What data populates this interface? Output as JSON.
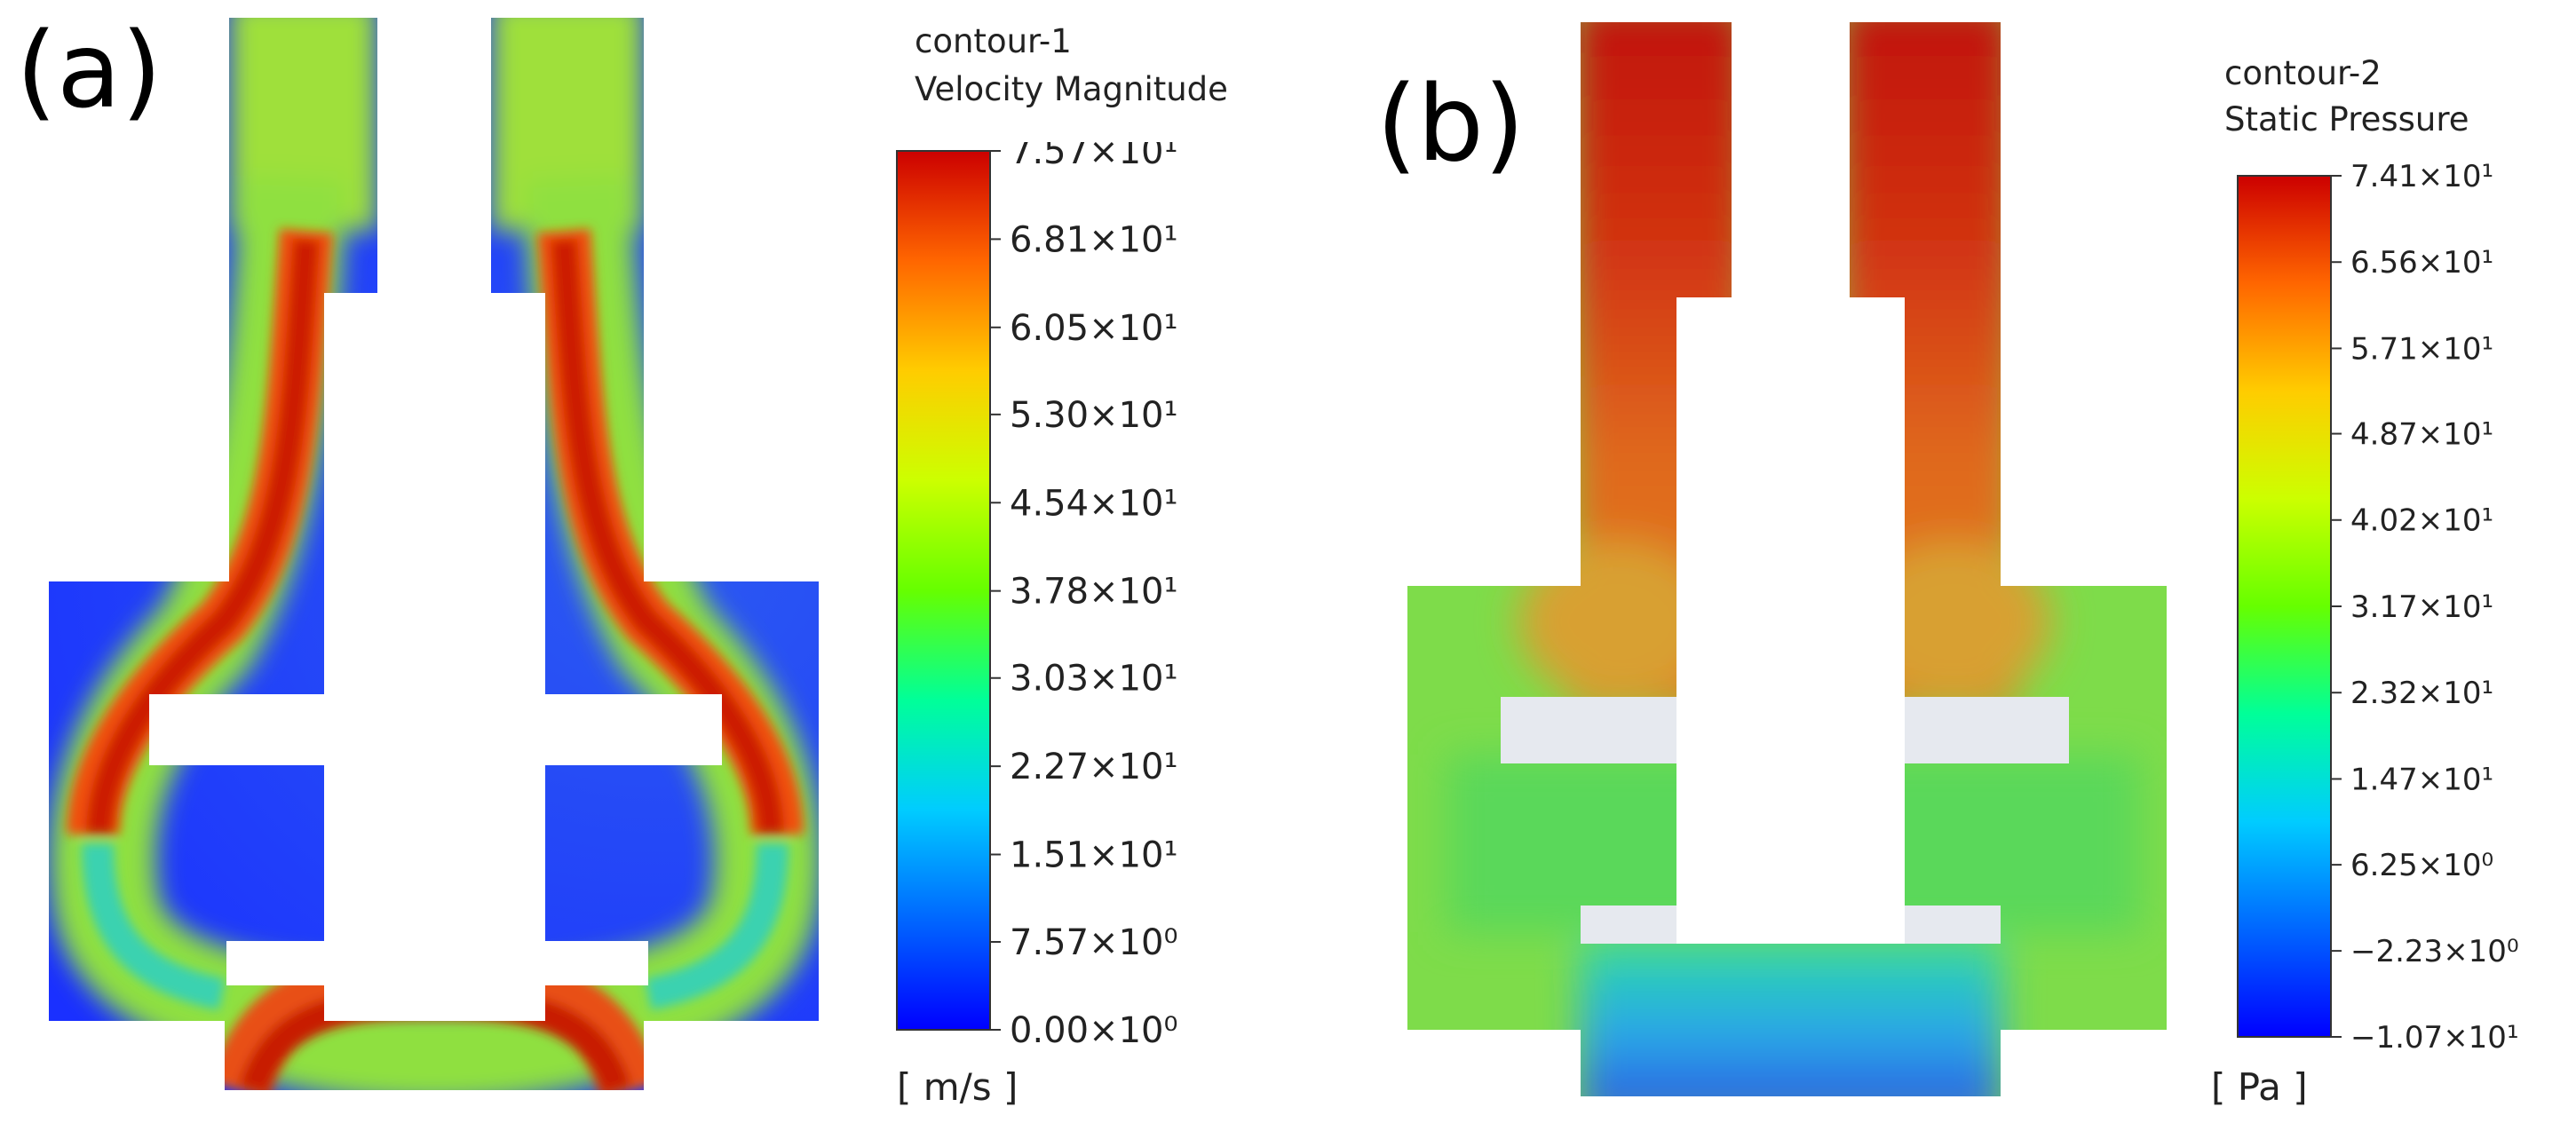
{
  "colors": {
    "colormap": [
      "#0000ff",
      "#0066ff",
      "#00ccff",
      "#00ff99",
      "#66ff00",
      "#ccff00",
      "#ffcc00",
      "#ff6600",
      "#cc0000"
    ],
    "blue": "#1a3cff",
    "red": "#c81000",
    "orange": "#e8601a",
    "green": "#74d93a",
    "lightgreen": "#8ee045",
    "cyan": "#2fd9b0",
    "white": "#ffffff",
    "gap": "#e6e9ef"
  },
  "chart_data": [
    {
      "type": "heatmap",
      "panel_label": "(a)",
      "legend_name": "contour-1",
      "quantity": "Velocity Magnitude",
      "unit": "[ m/s ]",
      "range": [
        0.0,
        75.7
      ],
      "ticks": [
        {
          "label": "7.57×10¹",
          "value": 75.7
        },
        {
          "label": "6.81×10¹",
          "value": 68.1
        },
        {
          "label": "6.05×10¹",
          "value": 60.5
        },
        {
          "label": "5.30×10¹",
          "value": 53.0
        },
        {
          "label": "4.54×10¹",
          "value": 45.4
        },
        {
          "label": "3.78×10¹",
          "value": 37.8
        },
        {
          "label": "3.03×10¹",
          "value": 30.3
        },
        {
          "label": "2.27×10¹",
          "value": 22.7
        },
        {
          "label": "1.51×10¹",
          "value": 15.1
        },
        {
          "label": "7.57×10⁰",
          "value": 7.57
        },
        {
          "label": "0.00×10⁰",
          "value": 0.0
        }
      ]
    },
    {
      "type": "heatmap",
      "panel_label": "(b)",
      "legend_name": "contour-2",
      "quantity": "Static Pressure",
      "unit": "[ Pa ]",
      "range": [
        -10.7,
        74.1
      ],
      "ticks": [
        {
          "label": "7.41×10¹",
          "value": 74.1
        },
        {
          "label": "6.56×10¹",
          "value": 65.6
        },
        {
          "label": "5.71×10¹",
          "value": 57.1
        },
        {
          "label": "4.87×10¹",
          "value": 48.7
        },
        {
          "label": "4.02×10¹",
          "value": 40.2
        },
        {
          "label": "3.17×10¹",
          "value": 31.7
        },
        {
          "label": "2.32×10¹",
          "value": 23.2
        },
        {
          "label": "1.47×10¹",
          "value": 14.7
        },
        {
          "label": "6.25×10⁰",
          "value": 6.25
        },
        {
          "label": "−2.23×10⁰",
          "value": -2.23
        },
        {
          "label": "−1.07×10¹",
          "value": -10.7
        }
      ]
    }
  ]
}
